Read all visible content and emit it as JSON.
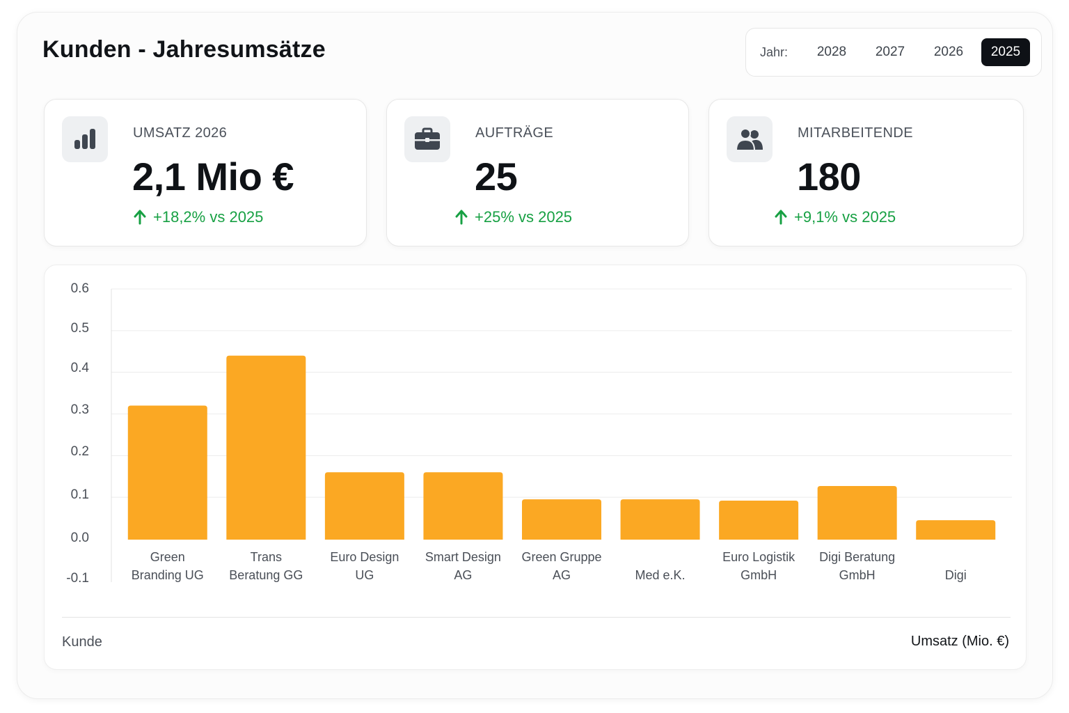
{
  "page": {
    "title": "Kunden - Jahresumsätze"
  },
  "year_picker": {
    "label": "Jahr:",
    "years": [
      "2028",
      "2027",
      "2026",
      "2025"
    ],
    "selected": "2025"
  },
  "kpis": [
    {
      "icon": "bar-chart-icon",
      "label": "UMSATZ 2026",
      "value": "2,1 Mio €",
      "delta": "+18,2% vs 2025"
    },
    {
      "icon": "briefcase-icon",
      "label": "AUFTRÄGE",
      "value": "25",
      "delta": "+25% vs 2025"
    },
    {
      "icon": "users-icon",
      "label": "MITARBEITENDE",
      "value": "180",
      "delta": "+9,1% vs 2025"
    }
  ],
  "colors": {
    "bar": "#FBA823",
    "positive": "#17A043",
    "active_year_bg": "#0E1116"
  },
  "chart_data": {
    "type": "bar",
    "categories": [
      [
        "Green",
        "Branding UG"
      ],
      [
        "Trans",
        "Beratung GG"
      ],
      [
        "Euro Design",
        "UG"
      ],
      [
        "Smart Design",
        "AG"
      ],
      [
        "Green Gruppe",
        "AG"
      ],
      [
        "Med e.K."
      ],
      [
        "Euro Logistik",
        "GmbH"
      ],
      [
        "Digi Beratung",
        "GmbH"
      ],
      [
        "Digi"
      ]
    ],
    "values": [
      0.32,
      0.44,
      0.16,
      0.16,
      0.095,
      0.095,
      0.092,
      0.127,
      0.045
    ],
    "y_ticks": [
      "0.6",
      "0.5",
      "0.4",
      "0.3",
      "0.2",
      "0.1",
      "0.0",
      "-0.1"
    ],
    "ylim": [
      -0.1,
      0.6
    ],
    "xlabel": "Kunde",
    "ylabel": "Umsatz (Mio. €)",
    "grid": true
  }
}
